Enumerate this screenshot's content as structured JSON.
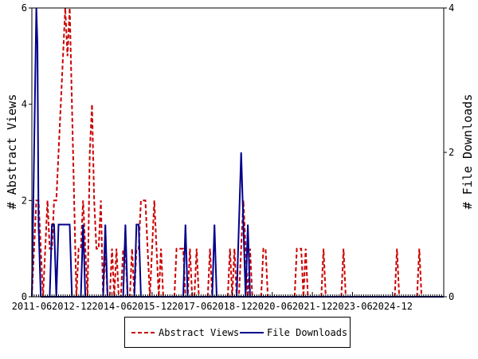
{
  "chart_data": {
    "type": "line",
    "x_ticks": [
      "2011-06",
      "2012-12",
      "2014-06",
      "2015-12",
      "2017-06",
      "2018-12",
      "2020-06",
      "2021-12",
      "2023-06",
      "2024-12"
    ],
    "left_axis": {
      "label": "# Abstract Views",
      "ylim": [
        0,
        6
      ],
      "ticks": [
        "0",
        "2",
        "4",
        "6"
      ]
    },
    "right_axis": {
      "label": "# File Downloads",
      "ylim": [
        0,
        4
      ],
      "ticks": [
        "0",
        "2",
        "4"
      ]
    },
    "x_range_months": 171,
    "series": [
      {
        "name": "Abstract Views",
        "axis": "left",
        "color": "#cc0000",
        "style": "dashed",
        "points": [
          [
            0,
            0
          ],
          [
            1,
            1
          ],
          [
            2,
            2
          ],
          [
            3,
            2
          ],
          [
            4,
            1
          ],
          [
            5,
            0
          ],
          [
            6,
            1
          ],
          [
            7,
            2
          ],
          [
            8,
            1
          ],
          [
            9,
            1
          ],
          [
            10,
            2
          ],
          [
            11,
            2
          ],
          [
            12,
            3
          ],
          [
            13,
            4
          ],
          [
            14,
            5
          ],
          [
            15,
            6
          ],
          [
            16,
            5
          ],
          [
            17,
            6
          ],
          [
            18,
            4
          ],
          [
            19,
            2
          ],
          [
            20,
            0
          ],
          [
            21,
            1
          ],
          [
            22,
            1
          ],
          [
            23,
            2
          ],
          [
            24,
            1
          ],
          [
            25,
            0
          ],
          [
            26,
            3
          ],
          [
            27,
            4
          ],
          [
            28,
            2
          ],
          [
            29,
            1
          ],
          [
            30,
            1
          ],
          [
            31,
            2
          ],
          [
            32,
            0
          ],
          [
            33,
            1
          ],
          [
            34,
            0
          ],
          [
            35,
            0
          ],
          [
            36,
            1
          ],
          [
            37,
            0
          ],
          [
            38,
            1
          ],
          [
            39,
            0
          ],
          [
            40,
            0
          ],
          [
            41,
            1
          ],
          [
            42,
            1
          ],
          [
            43,
            0
          ],
          [
            44,
            0
          ],
          [
            45,
            1
          ],
          [
            46,
            0
          ],
          [
            47,
            1
          ],
          [
            48,
            1
          ],
          [
            49,
            2
          ],
          [
            50,
            2
          ],
          [
            51,
            2
          ],
          [
            52,
            1
          ],
          [
            53,
            0
          ],
          [
            54,
            1
          ],
          [
            55,
            2
          ],
          [
            56,
            1
          ],
          [
            57,
            0
          ],
          [
            58,
            1
          ],
          [
            59,
            0
          ],
          [
            64,
            0
          ],
          [
            65,
            1
          ],
          [
            66,
            1
          ],
          [
            67,
            1
          ],
          [
            68,
            1
          ],
          [
            69,
            0
          ],
          [
            70,
            0
          ],
          [
            71,
            1
          ],
          [
            72,
            0
          ],
          [
            73,
            0
          ],
          [
            74,
            1
          ],
          [
            75,
            0
          ],
          [
            79,
            0
          ],
          [
            80,
            1
          ],
          [
            81,
            0
          ],
          [
            88,
            0
          ],
          [
            89,
            1
          ],
          [
            90,
            0
          ],
          [
            91,
            1
          ],
          [
            92,
            0
          ],
          [
            93,
            0
          ],
          [
            94,
            1
          ],
          [
            95,
            2
          ],
          [
            96,
            1
          ],
          [
            97,
            0
          ],
          [
            98,
            1
          ],
          [
            99,
            0
          ],
          [
            103,
            0
          ],
          [
            104,
            1
          ],
          [
            105,
            1
          ],
          [
            106,
            0
          ],
          [
            118,
            0
          ],
          [
            119,
            1
          ],
          [
            120,
            1
          ],
          [
            121,
            1
          ],
          [
            122,
            0
          ],
          [
            123,
            1
          ],
          [
            124,
            0
          ],
          [
            130,
            0
          ],
          [
            131,
            1
          ],
          [
            132,
            0
          ],
          [
            139,
            0
          ],
          [
            140,
            1
          ],
          [
            141,
            0
          ],
          [
            163,
            0
          ],
          [
            164,
            1
          ],
          [
            165,
            0
          ],
          [
            173,
            0
          ],
          [
            174,
            1
          ],
          [
            175,
            0
          ]
        ]
      },
      {
        "name": "File Downloads",
        "axis": "right",
        "color": "#00008b",
        "style": "solid",
        "points": [
          [
            0,
            0
          ],
          [
            1,
            2
          ],
          [
            2,
            4
          ],
          [
            2.5,
            3.5
          ],
          [
            3,
            1
          ],
          [
            4,
            0
          ],
          [
            8,
            0
          ],
          [
            9,
            1
          ],
          [
            10,
            1
          ],
          [
            11,
            0
          ],
          [
            12,
            1
          ],
          [
            13,
            1
          ],
          [
            14,
            1
          ],
          [
            15,
            1
          ],
          [
            16,
            1
          ],
          [
            17,
            1
          ],
          [
            18,
            0
          ],
          [
            22,
            0
          ],
          [
            23,
            1
          ],
          [
            24,
            0
          ],
          [
            32,
            0
          ],
          [
            33,
            1
          ],
          [
            34,
            0
          ],
          [
            41,
            0
          ],
          [
            42,
            1
          ],
          [
            43,
            0
          ],
          [
            46,
            0
          ],
          [
            47,
            1
          ],
          [
            48,
            1
          ],
          [
            49,
            0
          ],
          [
            68,
            0
          ],
          [
            69,
            1
          ],
          [
            70,
            0
          ],
          [
            81,
            0
          ],
          [
            82,
            1
          ],
          [
            83,
            0
          ],
          [
            92,
            0
          ],
          [
            93,
            1
          ],
          [
            94,
            2
          ],
          [
            95,
            1
          ],
          [
            96,
            0
          ],
          [
            97,
            1
          ],
          [
            98,
            0
          ]
        ]
      }
    ]
  }
}
